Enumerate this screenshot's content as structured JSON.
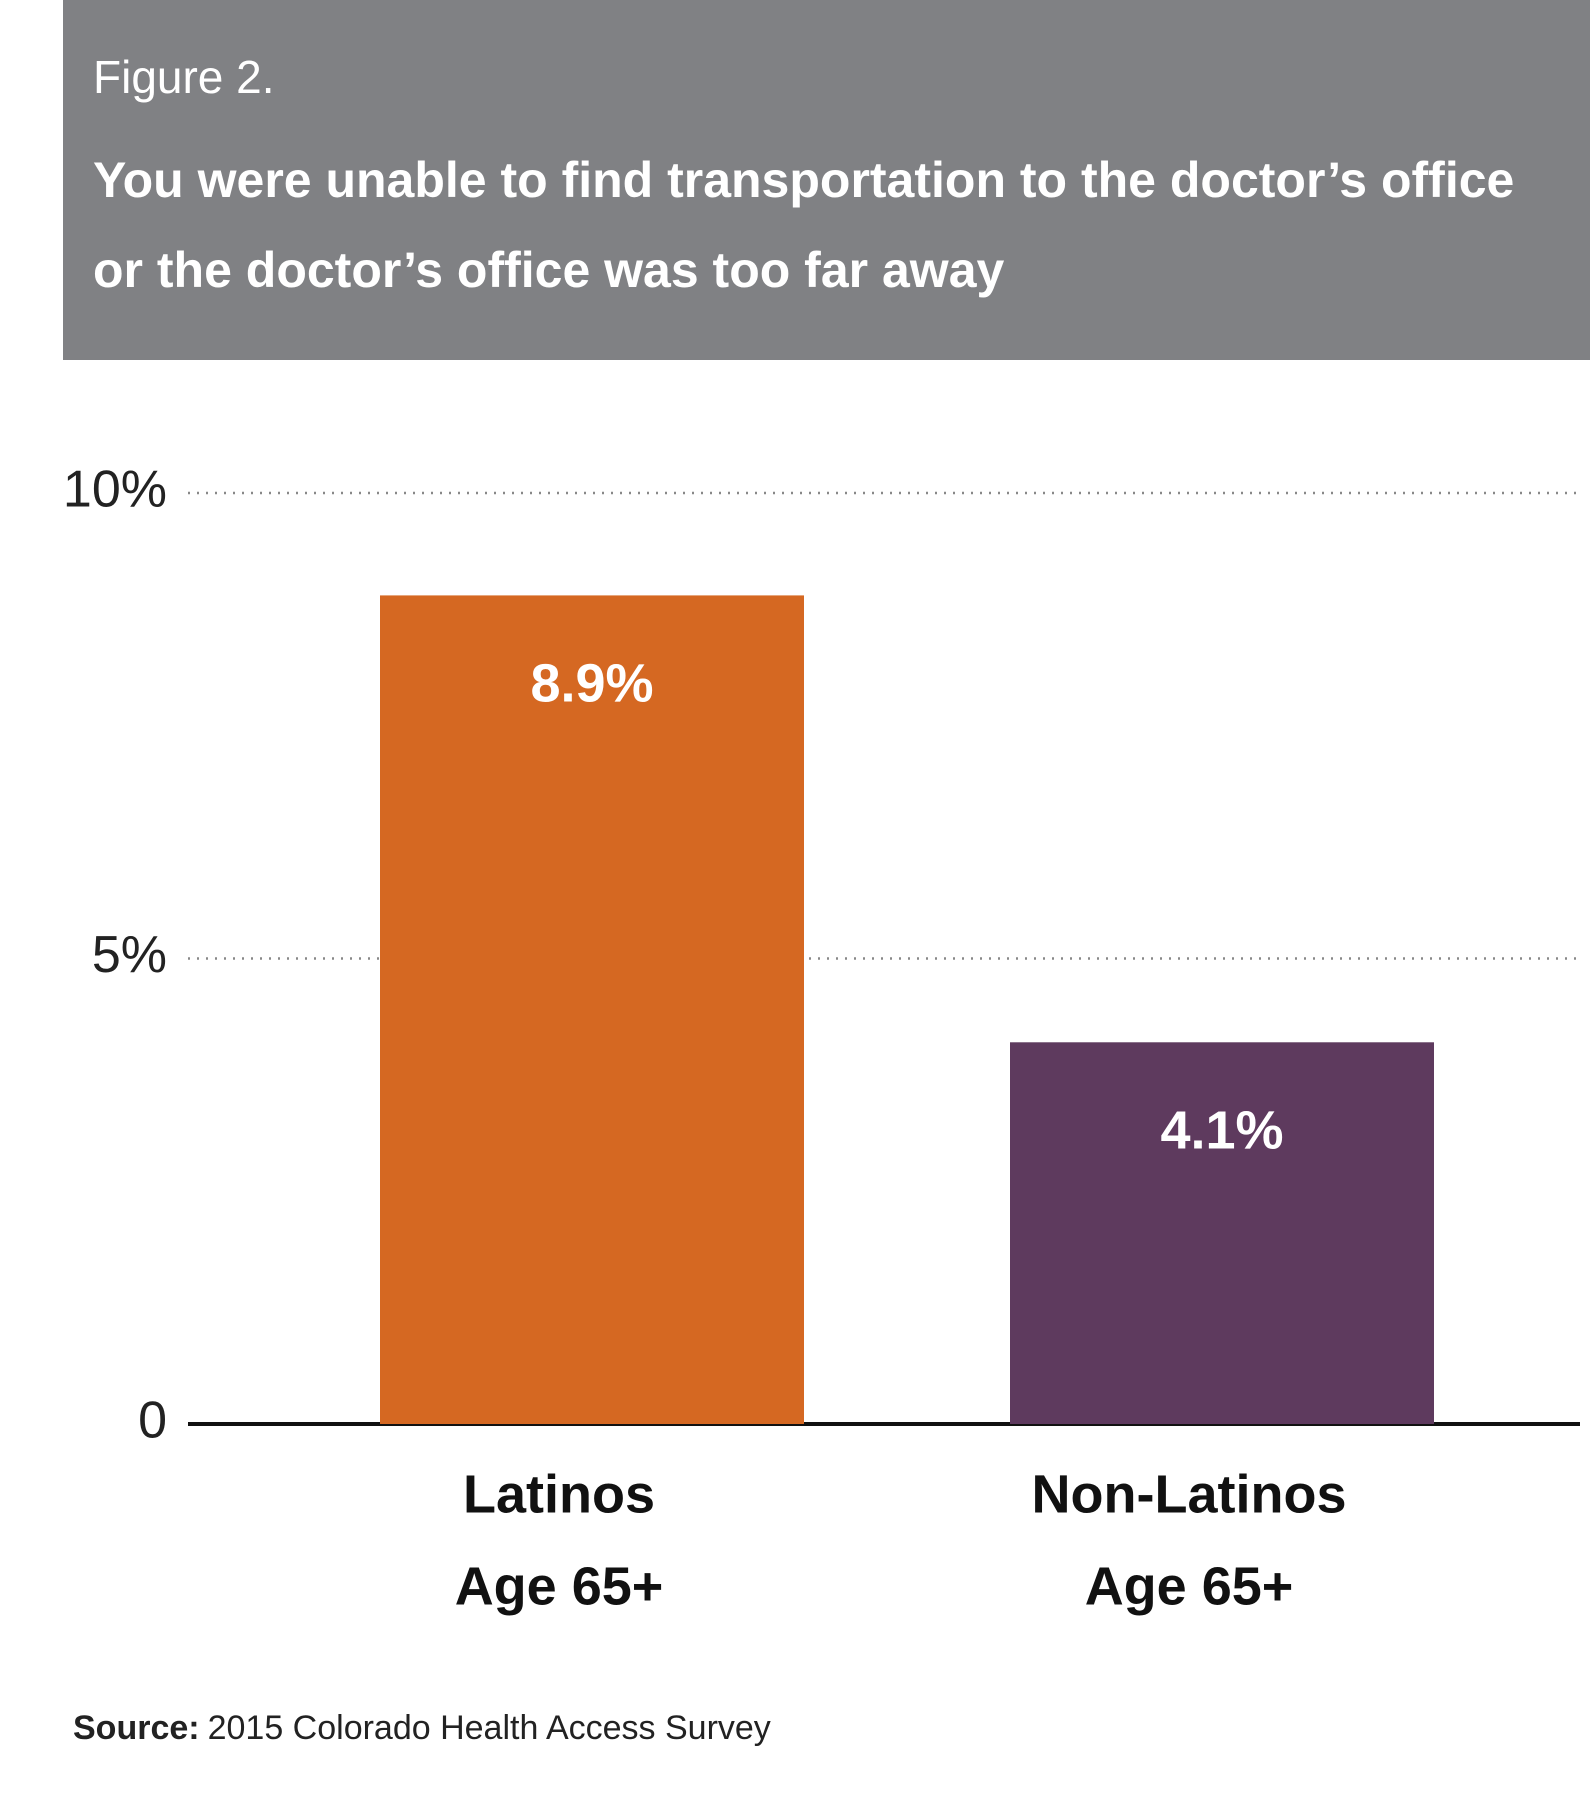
{
  "chart_data": {
    "type": "bar",
    "figure_label": "Figure 2.",
    "title_lines": [
      "You were unable to find transportation to the doctor’s office",
      "or the doctor’s office was too far away"
    ],
    "categories": [
      [
        "Latinos",
        "Age 65+"
      ],
      [
        "Non-Latinos",
        "Age 65+"
      ]
    ],
    "values": [
      8.9,
      4.1
    ],
    "value_labels": [
      "8.9%",
      "4.1%"
    ],
    "colors": [
      "#d56822",
      "#5e3a5e"
    ],
    "ylim": [
      0,
      10
    ],
    "yticks": [
      0,
      {
        "value": 5,
        "label": "5%"
      },
      {
        "value": 10,
        "label": "10%"
      }
    ],
    "grid": true,
    "source": {
      "label": "Source:",
      "text": "2015 Colorado Health Access Survey"
    }
  }
}
